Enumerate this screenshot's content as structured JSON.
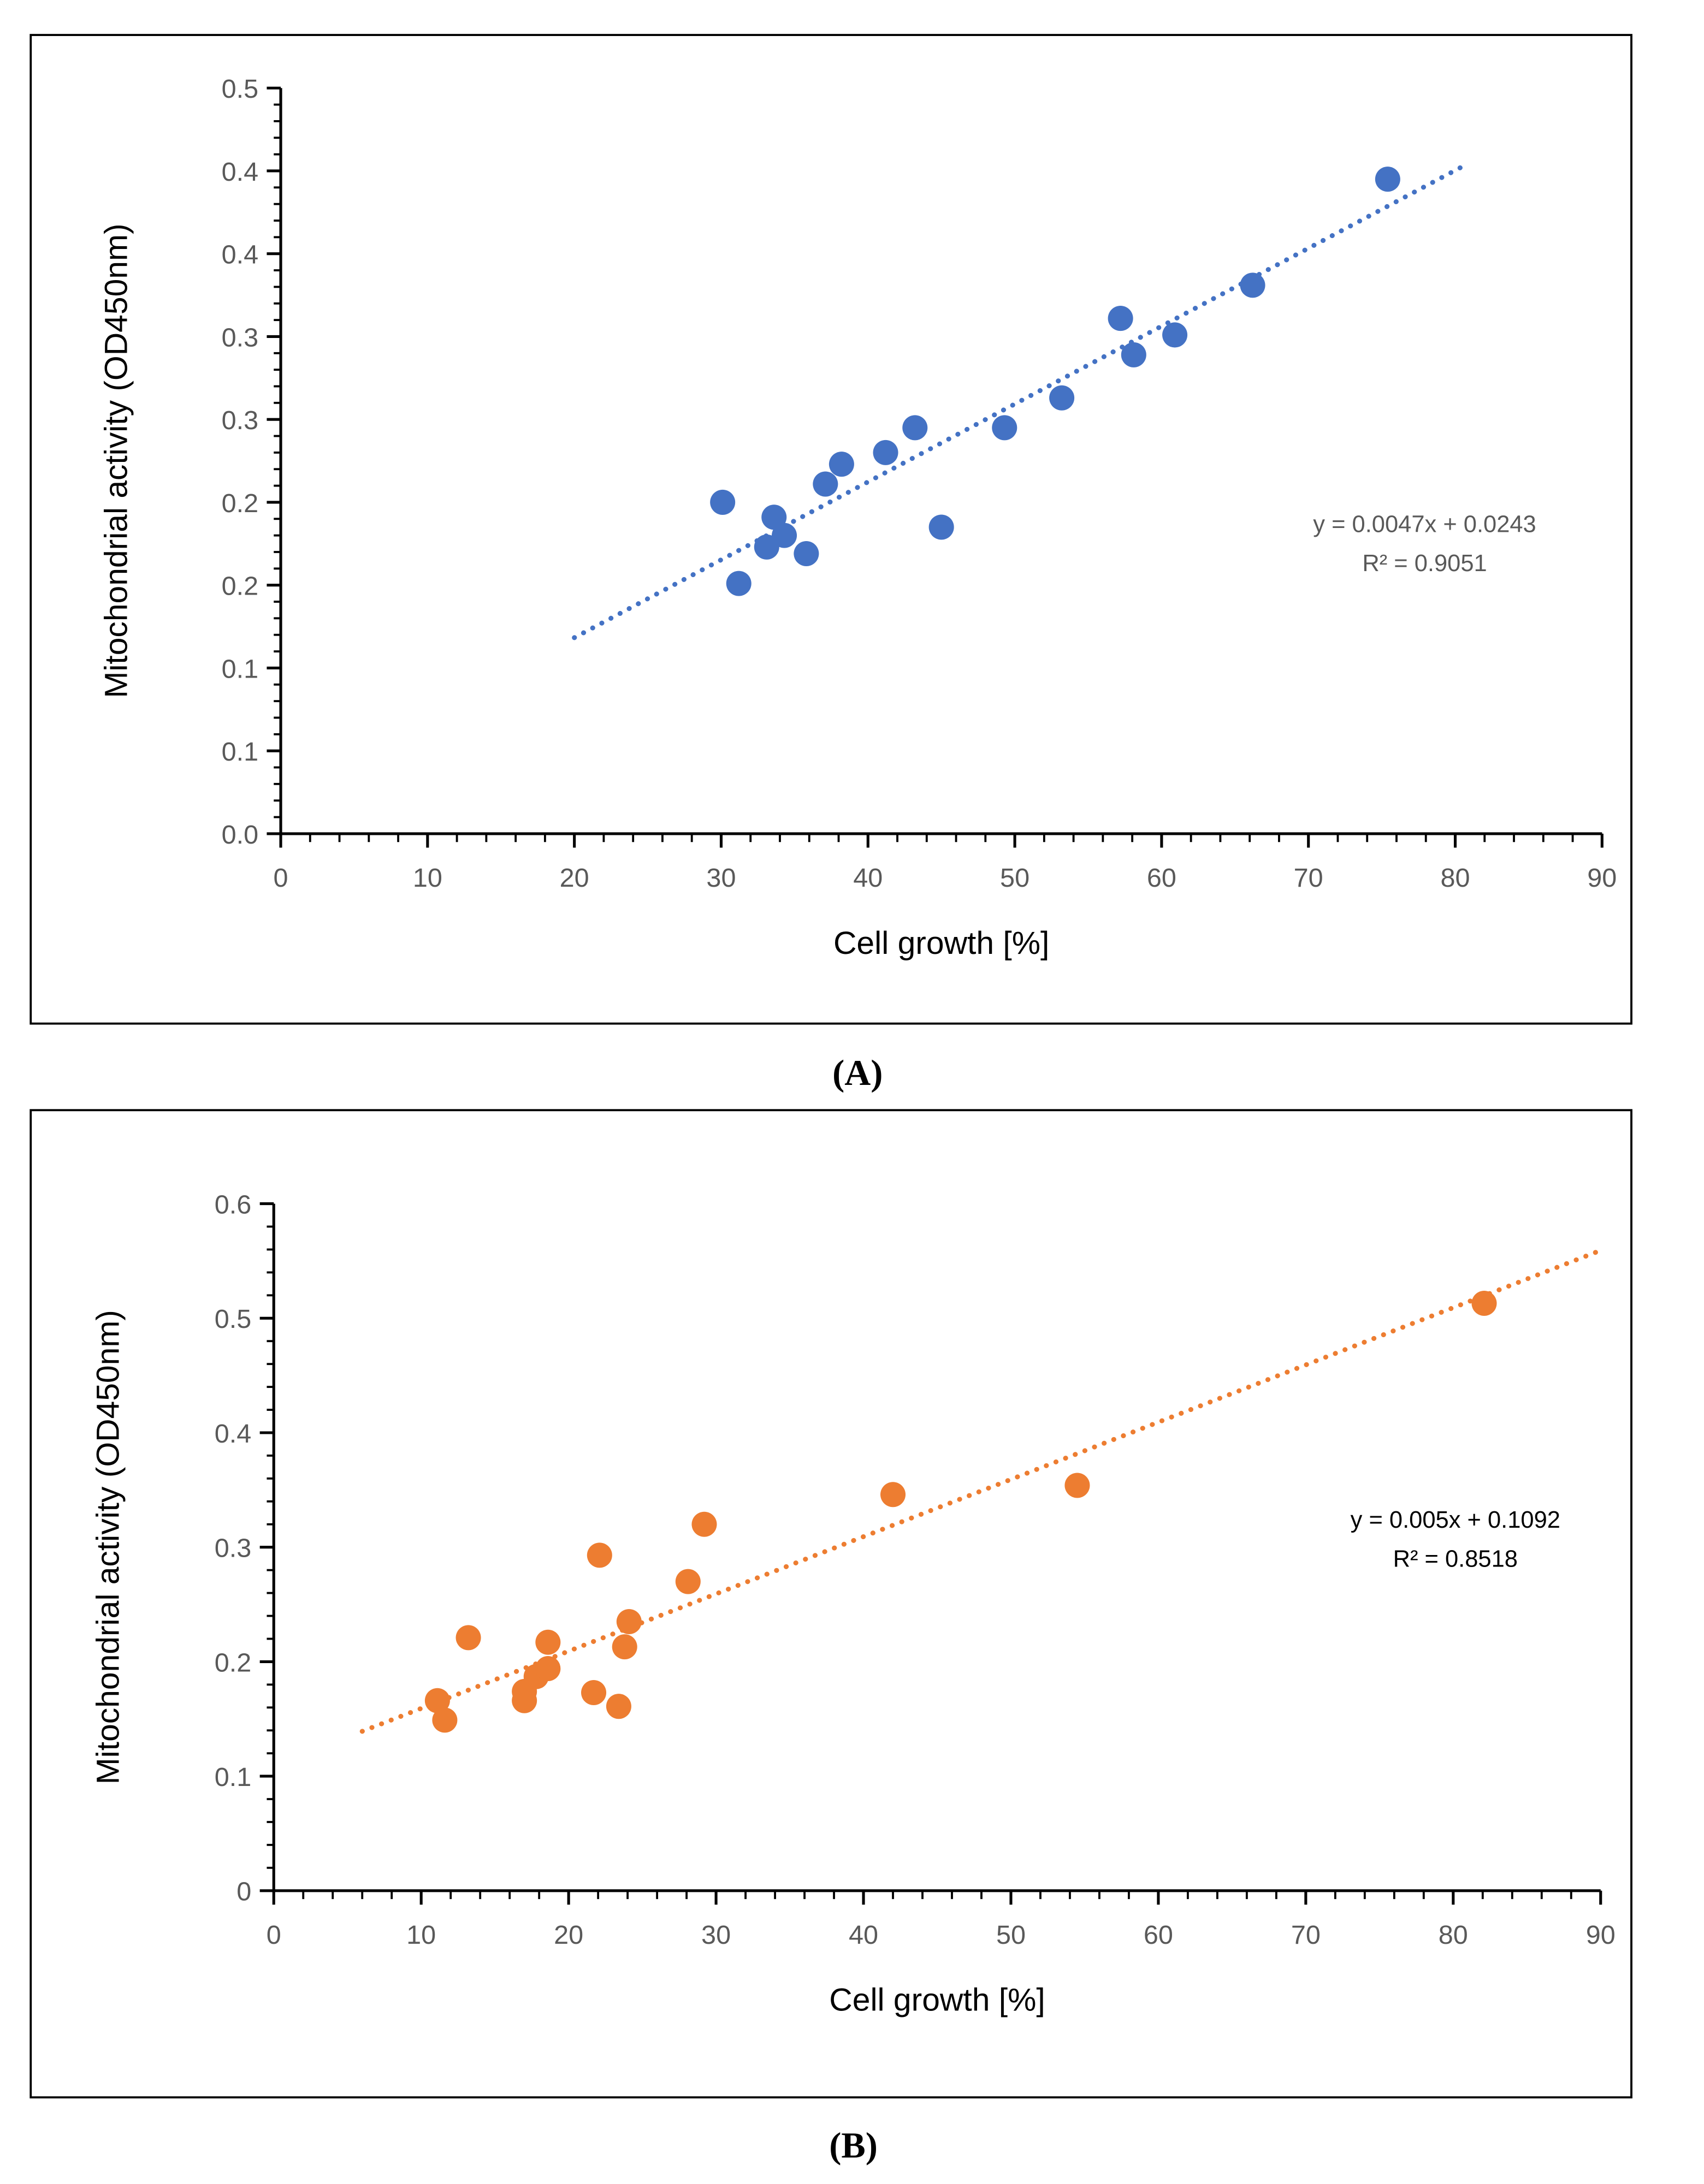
{
  "chart_data": [
    {
      "panel_label": "(A)",
      "type": "scatter",
      "xlabel": "Cell growth [%]",
      "ylabel": "Mitochondrial activity (OD450nm)",
      "xlim": [
        0,
        90
      ],
      "ylim": [
        0,
        0.45
      ],
      "x_ticks": [
        0,
        10,
        20,
        30,
        40,
        50,
        60,
        70,
        80,
        90
      ],
      "x_tick_labels": [
        "0",
        "10",
        "20",
        "30",
        "40",
        "50",
        "60",
        "70",
        "80",
        "90"
      ],
      "y_ticks": [
        0,
        0.05,
        0.1,
        0.15,
        0.2,
        0.25,
        0.3,
        0.35,
        0.4,
        0.45
      ],
      "y_tick_labels": [
        "0.0",
        "0.1",
        "0.1",
        "0.2",
        "0.2",
        "0.3",
        "0.3",
        "0.4",
        "0.4",
        "0.5"
      ],
      "grid": false,
      "color": "#4472C4",
      "label_color": "#595959",
      "series": [
        {
          "name": "A",
          "x": [
            30.1,
            31.2,
            33.1,
            33.6,
            34.3,
            35.8,
            37.1,
            38.2,
            41.2,
            43.2,
            45.0,
            49.3,
            53.2,
            57.2,
            58.1,
            60.9,
            66.2,
            75.4
          ],
          "y": [
            0.2,
            0.151,
            0.173,
            0.191,
            0.18,
            0.169,
            0.211,
            0.223,
            0.23,
            0.245,
            0.185,
            0.245,
            0.263,
            0.311,
            0.289,
            0.301,
            0.331,
            0.395
          ]
        }
      ],
      "trendline": {
        "slope": 0.0047,
        "intercept": 0.0243,
        "x_range": [
          20,
          80.5
        ],
        "style": "dotted"
      },
      "equation": "y = 0.0047x + 0.0243",
      "r2": "R² = 0.9051"
    },
    {
      "panel_label": "(B)",
      "type": "scatter",
      "xlabel": "Cell growth [%]",
      "ylabel": "Mitochondrial activity (OD450nm)",
      "xlim": [
        0,
        90
      ],
      "ylim": [
        0,
        0.6
      ],
      "x_ticks": [
        0,
        10,
        20,
        30,
        40,
        50,
        60,
        70,
        80,
        90
      ],
      "x_tick_labels": [
        "0",
        "10",
        "20",
        "30",
        "40",
        "50",
        "60",
        "70",
        "80",
        "90"
      ],
      "y_ticks": [
        0,
        0.1,
        0.2,
        0.3,
        0.4,
        0.5,
        0.6
      ],
      "y_tick_labels": [
        "0",
        "0.1",
        "0.2",
        "0.3",
        "0.4",
        "0.5",
        "0.6"
      ],
      "grid": false,
      "color": "#ED7D31",
      "label_color": "#000000",
      "series": [
        {
          "name": "B",
          "x": [
            11.1,
            11.6,
            13.2,
            17.0,
            17.0,
            17.8,
            18.6,
            18.6,
            21.7,
            22.1,
            23.4,
            23.8,
            24.1,
            28.1,
            29.2,
            42.0,
            54.5,
            82.1
          ],
          "y": [
            0.166,
            0.149,
            0.221,
            0.166,
            0.174,
            0.187,
            0.194,
            0.217,
            0.173,
            0.293,
            0.161,
            0.213,
            0.235,
            0.27,
            0.32,
            0.346,
            0.354,
            0.513
          ]
        }
      ],
      "trendline": {
        "slope": 0.005,
        "intercept": 0.1092,
        "x_range": [
          6,
          90
        ],
        "style": "dotted"
      },
      "equation": "y = 0.005x + 0.1092",
      "r2": "R² = 0.8518"
    }
  ]
}
